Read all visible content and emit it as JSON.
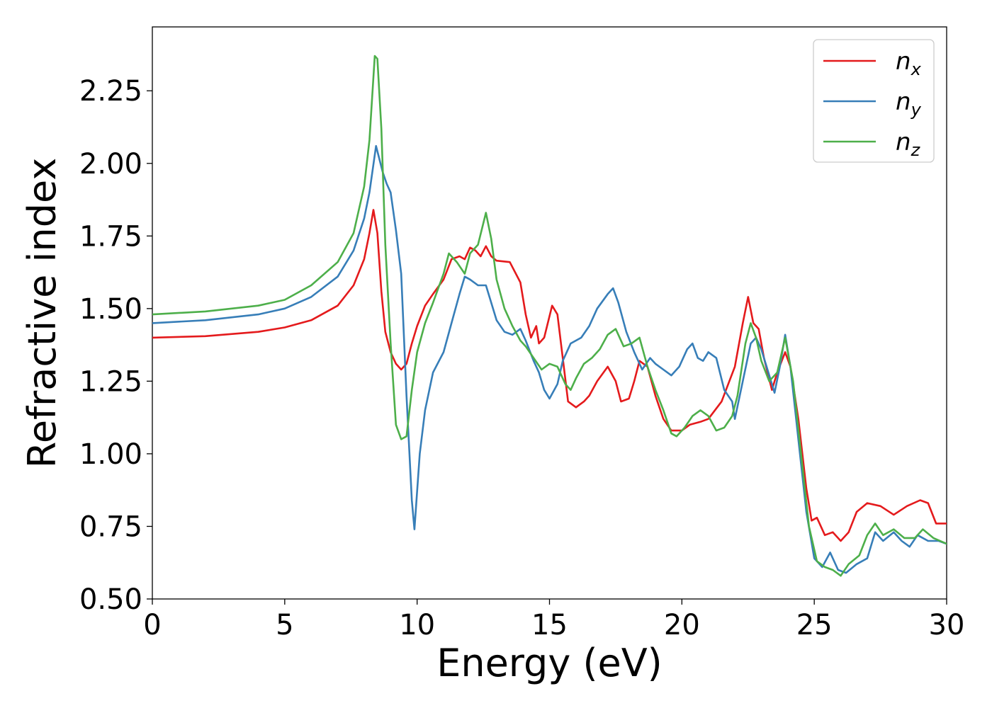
{
  "chart_data": {
    "type": "line",
    "title": "",
    "xlabel": "Energy (eV)",
    "ylabel": "Refractive index",
    "xlim": [
      0,
      30
    ],
    "ylim": [
      0.5,
      2.47
    ],
    "xticks": [
      0,
      5,
      10,
      15,
      20,
      25,
      30
    ],
    "xtick_labels": [
      "0",
      "5",
      "10",
      "15",
      "20",
      "25",
      "30"
    ],
    "yticks": [
      0.5,
      0.75,
      1.0,
      1.25,
      1.5,
      1.75,
      2.0,
      2.25
    ],
    "ytick_labels": [
      "0.50",
      "0.75",
      "1.00",
      "1.25",
      "1.50",
      "1.75",
      "2.00",
      "2.25"
    ],
    "grid": false,
    "legend_position": "top-right",
    "series": [
      {
        "name": "n",
        "subscript": "x",
        "color": "#e41a1c",
        "points": [
          [
            0,
            1.4
          ],
          [
            2,
            1.405
          ],
          [
            4,
            1.42
          ],
          [
            5,
            1.435
          ],
          [
            6,
            1.46
          ],
          [
            7,
            1.51
          ],
          [
            7.6,
            1.58
          ],
          [
            8,
            1.67
          ],
          [
            8.2,
            1.76
          ],
          [
            8.35,
            1.84
          ],
          [
            8.5,
            1.76
          ],
          [
            8.65,
            1.56
          ],
          [
            8.8,
            1.42
          ],
          [
            9.0,
            1.35
          ],
          [
            9.2,
            1.31
          ],
          [
            9.4,
            1.29
          ],
          [
            9.6,
            1.31
          ],
          [
            9.8,
            1.38
          ],
          [
            10.0,
            1.44
          ],
          [
            10.3,
            1.51
          ],
          [
            10.6,
            1.55
          ],
          [
            11.0,
            1.6
          ],
          [
            11.3,
            1.67
          ],
          [
            11.6,
            1.68
          ],
          [
            11.8,
            1.67
          ],
          [
            12.0,
            1.71
          ],
          [
            12.2,
            1.7
          ],
          [
            12.4,
            1.68
          ],
          [
            12.6,
            1.715
          ],
          [
            12.8,
            1.68
          ],
          [
            13.0,
            1.665
          ],
          [
            13.5,
            1.66
          ],
          [
            13.9,
            1.59
          ],
          [
            14.1,
            1.48
          ],
          [
            14.3,
            1.4
          ],
          [
            14.5,
            1.44
          ],
          [
            14.6,
            1.38
          ],
          [
            14.8,
            1.4
          ],
          [
            15.1,
            1.51
          ],
          [
            15.3,
            1.48
          ],
          [
            15.5,
            1.33
          ],
          [
            15.7,
            1.18
          ],
          [
            16.0,
            1.16
          ],
          [
            16.3,
            1.18
          ],
          [
            16.5,
            1.2
          ],
          [
            16.8,
            1.25
          ],
          [
            17.2,
            1.3
          ],
          [
            17.5,
            1.25
          ],
          [
            17.7,
            1.18
          ],
          [
            18.0,
            1.19
          ],
          [
            18.2,
            1.25
          ],
          [
            18.4,
            1.32
          ],
          [
            18.7,
            1.3
          ],
          [
            19.0,
            1.2
          ],
          [
            19.3,
            1.12
          ],
          [
            19.6,
            1.08
          ],
          [
            20.0,
            1.08
          ],
          [
            20.3,
            1.1
          ],
          [
            20.7,
            1.11
          ],
          [
            21.0,
            1.12
          ],
          [
            21.5,
            1.18
          ],
          [
            22.0,
            1.3
          ],
          [
            22.3,
            1.45
          ],
          [
            22.5,
            1.54
          ],
          [
            22.7,
            1.45
          ],
          [
            22.9,
            1.43
          ],
          [
            23.1,
            1.33
          ],
          [
            23.4,
            1.22
          ],
          [
            23.6,
            1.28
          ],
          [
            23.9,
            1.35
          ],
          [
            24.1,
            1.3
          ],
          [
            24.4,
            1.12
          ],
          [
            24.7,
            0.88
          ],
          [
            24.9,
            0.77
          ],
          [
            25.1,
            0.78
          ],
          [
            25.4,
            0.72
          ],
          [
            25.7,
            0.73
          ],
          [
            26.0,
            0.7
          ],
          [
            26.3,
            0.73
          ],
          [
            26.6,
            0.8
          ],
          [
            27.0,
            0.83
          ],
          [
            27.5,
            0.82
          ],
          [
            28.0,
            0.79
          ],
          [
            28.5,
            0.82
          ],
          [
            29.0,
            0.84
          ],
          [
            29.3,
            0.83
          ],
          [
            29.6,
            0.76
          ],
          [
            30.0,
            0.76
          ]
        ]
      },
      {
        "name": "n",
        "subscript": "y",
        "color": "#377eb8",
        "points": [
          [
            0,
            1.45
          ],
          [
            2,
            1.46
          ],
          [
            4,
            1.48
          ],
          [
            5,
            1.5
          ],
          [
            6,
            1.54
          ],
          [
            7,
            1.61
          ],
          [
            7.6,
            1.7
          ],
          [
            8,
            1.81
          ],
          [
            8.2,
            1.9
          ],
          [
            8.45,
            2.06
          ],
          [
            8.7,
            1.97
          ],
          [
            8.85,
            1.93
          ],
          [
            9.0,
            1.9
          ],
          [
            9.2,
            1.77
          ],
          [
            9.4,
            1.62
          ],
          [
            9.6,
            1.2
          ],
          [
            9.8,
            0.84
          ],
          [
            9.9,
            0.74
          ],
          [
            10.1,
            1.0
          ],
          [
            10.3,
            1.15
          ],
          [
            10.6,
            1.28
          ],
          [
            11.0,
            1.35
          ],
          [
            11.3,
            1.45
          ],
          [
            11.6,
            1.55
          ],
          [
            11.8,
            1.61
          ],
          [
            12.0,
            1.6
          ],
          [
            12.3,
            1.58
          ],
          [
            12.6,
            1.58
          ],
          [
            12.8,
            1.52
          ],
          [
            13.0,
            1.46
          ],
          [
            13.3,
            1.42
          ],
          [
            13.6,
            1.41
          ],
          [
            13.9,
            1.43
          ],
          [
            14.1,
            1.39
          ],
          [
            14.4,
            1.32
          ],
          [
            14.6,
            1.28
          ],
          [
            14.8,
            1.22
          ],
          [
            15.0,
            1.19
          ],
          [
            15.3,
            1.24
          ],
          [
            15.5,
            1.32
          ],
          [
            15.8,
            1.38
          ],
          [
            16.2,
            1.4
          ],
          [
            16.5,
            1.44
          ],
          [
            16.8,
            1.5
          ],
          [
            17.2,
            1.55
          ],
          [
            17.4,
            1.57
          ],
          [
            17.6,
            1.52
          ],
          [
            17.9,
            1.42
          ],
          [
            18.2,
            1.35
          ],
          [
            18.5,
            1.29
          ],
          [
            18.8,
            1.33
          ],
          [
            19.0,
            1.31
          ],
          [
            19.3,
            1.29
          ],
          [
            19.6,
            1.27
          ],
          [
            19.9,
            1.3
          ],
          [
            20.2,
            1.36
          ],
          [
            20.4,
            1.38
          ],
          [
            20.6,
            1.33
          ],
          [
            20.8,
            1.32
          ],
          [
            21.0,
            1.35
          ],
          [
            21.3,
            1.33
          ],
          [
            21.6,
            1.22
          ],
          [
            21.9,
            1.18
          ],
          [
            22.0,
            1.12
          ],
          [
            22.3,
            1.25
          ],
          [
            22.6,
            1.38
          ],
          [
            22.8,
            1.4
          ],
          [
            23.0,
            1.36
          ],
          [
            23.2,
            1.3
          ],
          [
            23.5,
            1.21
          ],
          [
            23.7,
            1.3
          ],
          [
            23.9,
            1.41
          ],
          [
            24.1,
            1.3
          ],
          [
            24.4,
            1.05
          ],
          [
            24.7,
            0.8
          ],
          [
            25.0,
            0.64
          ],
          [
            25.3,
            0.61
          ],
          [
            25.6,
            0.66
          ],
          [
            25.9,
            0.6
          ],
          [
            26.2,
            0.59
          ],
          [
            26.6,
            0.62
          ],
          [
            27.0,
            0.64
          ],
          [
            27.3,
            0.73
          ],
          [
            27.6,
            0.7
          ],
          [
            28.0,
            0.73
          ],
          [
            28.3,
            0.7
          ],
          [
            28.6,
            0.68
          ],
          [
            28.9,
            0.72
          ],
          [
            29.3,
            0.7
          ],
          [
            29.7,
            0.7
          ],
          [
            30.0,
            0.69
          ]
        ]
      },
      {
        "name": "n",
        "subscript": "z",
        "color": "#4daf4a",
        "points": [
          [
            0,
            1.48
          ],
          [
            2,
            1.49
          ],
          [
            4,
            1.51
          ],
          [
            5,
            1.53
          ],
          [
            6,
            1.58
          ],
          [
            7,
            1.66
          ],
          [
            7.6,
            1.76
          ],
          [
            8,
            1.92
          ],
          [
            8.2,
            2.08
          ],
          [
            8.4,
            2.37
          ],
          [
            8.5,
            2.36
          ],
          [
            8.65,
            2.12
          ],
          [
            8.8,
            1.72
          ],
          [
            9.0,
            1.38
          ],
          [
            9.2,
            1.1
          ],
          [
            9.4,
            1.05
          ],
          [
            9.6,
            1.06
          ],
          [
            9.8,
            1.22
          ],
          [
            10.0,
            1.35
          ],
          [
            10.3,
            1.45
          ],
          [
            10.6,
            1.52
          ],
          [
            11.0,
            1.62
          ],
          [
            11.2,
            1.69
          ],
          [
            11.5,
            1.66
          ],
          [
            11.8,
            1.62
          ],
          [
            12.0,
            1.69
          ],
          [
            12.3,
            1.72
          ],
          [
            12.6,
            1.83
          ],
          [
            12.8,
            1.74
          ],
          [
            13.0,
            1.6
          ],
          [
            13.3,
            1.5
          ],
          [
            13.6,
            1.44
          ],
          [
            13.9,
            1.39
          ],
          [
            14.1,
            1.37
          ],
          [
            14.4,
            1.33
          ],
          [
            14.7,
            1.29
          ],
          [
            15.0,
            1.31
          ],
          [
            15.3,
            1.3
          ],
          [
            15.6,
            1.24
          ],
          [
            15.8,
            1.22
          ],
          [
            16.0,
            1.26
          ],
          [
            16.3,
            1.31
          ],
          [
            16.6,
            1.33
          ],
          [
            16.9,
            1.36
          ],
          [
            17.2,
            1.41
          ],
          [
            17.5,
            1.43
          ],
          [
            17.8,
            1.37
          ],
          [
            18.1,
            1.38
          ],
          [
            18.4,
            1.4
          ],
          [
            18.7,
            1.3
          ],
          [
            19.0,
            1.22
          ],
          [
            19.3,
            1.15
          ],
          [
            19.6,
            1.07
          ],
          [
            19.8,
            1.06
          ],
          [
            20.1,
            1.09
          ],
          [
            20.4,
            1.13
          ],
          [
            20.7,
            1.15
          ],
          [
            21.0,
            1.13
          ],
          [
            21.3,
            1.08
          ],
          [
            21.6,
            1.09
          ],
          [
            21.9,
            1.13
          ],
          [
            22.1,
            1.2
          ],
          [
            22.4,
            1.38
          ],
          [
            22.6,
            1.45
          ],
          [
            22.8,
            1.4
          ],
          [
            23.0,
            1.32
          ],
          [
            23.3,
            1.25
          ],
          [
            23.6,
            1.28
          ],
          [
            23.9,
            1.4
          ],
          [
            24.2,
            1.25
          ],
          [
            24.5,
            1.0
          ],
          [
            24.8,
            0.75
          ],
          [
            25.1,
            0.63
          ],
          [
            25.4,
            0.61
          ],
          [
            25.7,
            0.6
          ],
          [
            26.0,
            0.58
          ],
          [
            26.3,
            0.62
          ],
          [
            26.7,
            0.65
          ],
          [
            27.0,
            0.72
          ],
          [
            27.3,
            0.76
          ],
          [
            27.6,
            0.72
          ],
          [
            28.0,
            0.74
          ],
          [
            28.4,
            0.71
          ],
          [
            28.8,
            0.71
          ],
          [
            29.1,
            0.74
          ],
          [
            29.5,
            0.71
          ],
          [
            30.0,
            0.69
          ]
        ]
      }
    ]
  }
}
